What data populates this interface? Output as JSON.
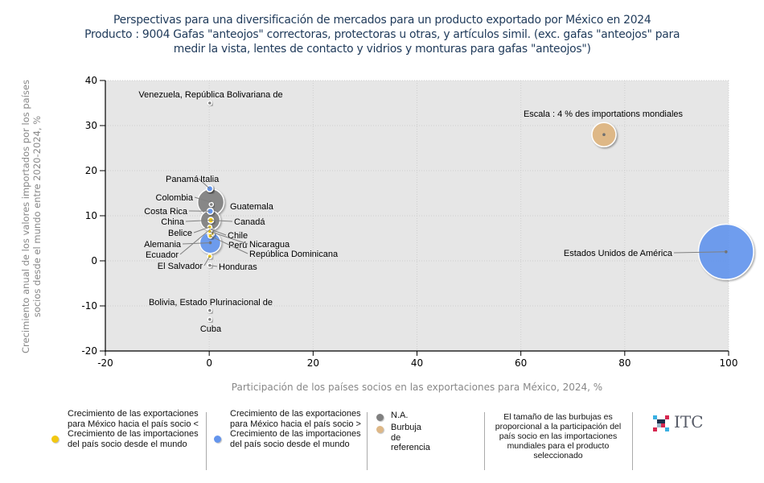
{
  "title": {
    "line1": "Perspectivas para una diversificación de mercados para un producto exportado por México en 2024",
    "line2": "Producto : 9004 Gafas \"anteojos\" correctoras, protectoras u otras, y artículos simil. (exc. gafas \"anteojos\" para",
    "line3": "medir la vista, lentes de contacto y vidrios y monturas para gafas \"anteojos\")"
  },
  "colors": {
    "yellow": "#f2c811",
    "blue": "#6495ed",
    "gray": "#808080",
    "reference": "#deb887",
    "plot_bg": "#e6e6e6"
  },
  "chart_data": {
    "type": "scatter",
    "subtype": "bubble",
    "xlabel": "Participación de los países socios en las exportaciones para México, 2024, %",
    "ylabel": "Crecimiento anual de los valores importados por los países socios desde el mundo entre 2020-2024, %",
    "xlim": [
      -20,
      100
    ],
    "ylim": [
      -20,
      40
    ],
    "xticks": [
      -20,
      0,
      20,
      40,
      60,
      80,
      100
    ],
    "yticks": [
      -20,
      -10,
      0,
      10,
      20,
      30,
      40
    ],
    "grid": true,
    "reference_bubble": {
      "label": "Escala : 4 % des importations mondiales",
      "x": 76,
      "y": 28,
      "size": 4,
      "category": "reference"
    },
    "points": [
      {
        "name": "Estados Unidos de América",
        "x": 99.5,
        "y": 2,
        "size": 24,
        "category": "blue"
      },
      {
        "name": "Colombia",
        "x": 0.3,
        "y": 13,
        "size": 5.5,
        "category": "gray"
      },
      {
        "name": "Guatemala",
        "x": 0.4,
        "y": 12.5,
        "size": 0.1,
        "category": "gray"
      },
      {
        "name": "China",
        "x": 0.2,
        "y": 9,
        "size": 3,
        "category": "gray"
      },
      {
        "name": "Alemania",
        "x": 0.2,
        "y": 4,
        "size": 3.5,
        "category": "blue"
      },
      {
        "name": "Panamá",
        "x": 0.1,
        "y": 16,
        "size": 0.3,
        "category": "blue"
      },
      {
        "name": "Italia",
        "x": 0.1,
        "y": 16,
        "size": 0.3,
        "category": "blue"
      },
      {
        "name": "Costa Rica",
        "x": 0.2,
        "y": 11,
        "size": 0.3,
        "category": "blue"
      },
      {
        "name": "Canadá",
        "x": 0.3,
        "y": 9,
        "size": 0.25,
        "category": "yellow"
      },
      {
        "name": "Belice",
        "x": 0.1,
        "y": 7.5,
        "size": 0.1,
        "category": "yellow"
      },
      {
        "name": "Chile",
        "x": 0.2,
        "y": 7,
        "size": 0.2,
        "category": "yellow"
      },
      {
        "name": "Perú",
        "x": 0.3,
        "y": 6,
        "size": 0.35,
        "category": "yellow"
      },
      {
        "name": "Nicaragua",
        "x": 0.1,
        "y": 6.5,
        "size": 0.1,
        "category": "yellow"
      },
      {
        "name": "República Dominicana",
        "x": 0.2,
        "y": 5.5,
        "size": 0.15,
        "category": "yellow"
      },
      {
        "name": "Ecuador",
        "x": 0.2,
        "y": 7,
        "size": 0.2,
        "category": "gray"
      },
      {
        "name": "El Salvador",
        "x": 0.1,
        "y": 1,
        "size": 0.15,
        "category": "yellow"
      },
      {
        "name": "Honduras",
        "x": 0.1,
        "y": -1,
        "size": 0.05,
        "category": "gray"
      },
      {
        "name": "Venezuela, República Bolivariana de",
        "x": 0.1,
        "y": 35,
        "size": 0.05,
        "category": "gray"
      },
      {
        "name": "Bolivia, Estado Plurinacional de",
        "x": 0.1,
        "y": -11,
        "size": 0.05,
        "category": "gray"
      },
      {
        "name": "Cuba",
        "x": 0.1,
        "y": -13,
        "size": 0.05,
        "category": "gray"
      }
    ]
  },
  "legend": {
    "yellow_label": "Crecimiento de las exportaciones para México hacia el país socio < Crecimiento de las importaciones del país socio desde el mundo",
    "blue_label": "Crecimiento de las exportaciones para México hacia el país socio > Crecimiento de las importaciones del país socio desde el mundo",
    "na_label": "N.A.",
    "reference_label": "Burbuja de referencia",
    "note": "El tamaño de las burbujas es proporcional a la participación del país socio en las importaciones mundiales para el producto seleccionado",
    "logo_text": "ITC"
  }
}
